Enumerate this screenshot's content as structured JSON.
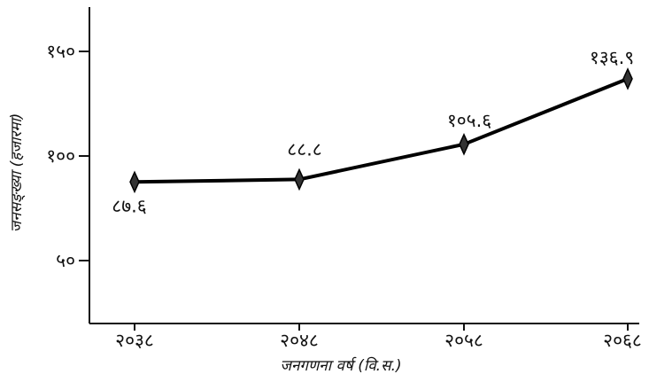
{
  "chart_data": {
    "type": "line",
    "title": "",
    "xlabel": "जनगणना वर्ष (वि.स.)",
    "ylabel": "जनसङ्ख्या (हजारमा)",
    "categories": [
      "२०३८",
      "२०४८",
      "२०५८",
      "२०६८"
    ],
    "values": [
      87.6,
      88.8,
      105.6,
      136.9
    ],
    "value_labels": [
      "८७.६",
      "८८.८",
      "१०५.६",
      "१३६.९"
    ],
    "y_ticks": [
      {
        "value": 50,
        "label": "५०"
      },
      {
        "value": 100,
        "label": "१००"
      },
      {
        "value": 150,
        "label": "१५०"
      }
    ],
    "ylim": [
      20,
      165
    ],
    "grid": false,
    "colors": {
      "line": "#000000",
      "marker": "#333333",
      "axis": "#111111"
    }
  }
}
